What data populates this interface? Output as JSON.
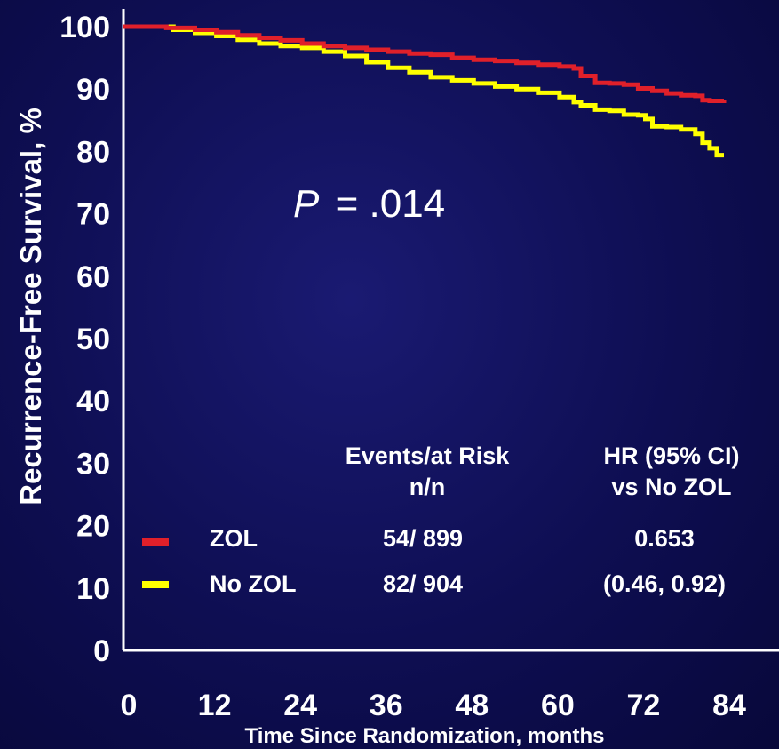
{
  "chart_data": {
    "type": "line",
    "xlabel": "Time Since Randomization, months",
    "ylabel": "Recurrence-Free Survival, %",
    "xlim": [
      0,
      84
    ],
    "ylim": [
      0,
      100
    ],
    "xticks": [
      "0",
      "12",
      "24",
      "36",
      "48",
      "60",
      "72",
      "84"
    ],
    "yticks": [
      "0",
      "10",
      "20",
      "30",
      "40",
      "50",
      "60",
      "70",
      "80",
      "90",
      "100"
    ],
    "annotation": {
      "p_prefix": "P",
      "p_value": "= .014"
    },
    "series": [
      {
        "name": "ZOL",
        "color": "#e0202a",
        "x": [
          0,
          4,
          6,
          10,
          13,
          16,
          19,
          22,
          25,
          28,
          31,
          34,
          37,
          40,
          43,
          46,
          49,
          52,
          55,
          58,
          61,
          63,
          64,
          66,
          68,
          70,
          72,
          74,
          76,
          78,
          80,
          81,
          82,
          84
        ],
        "y": [
          100,
          100,
          99.8,
          99.5,
          99.1,
          98.6,
          98.2,
          97.8,
          97.3,
          96.9,
          96.6,
          96.3,
          96.0,
          95.7,
          95.5,
          95.0,
          94.7,
          94.5,
          94.2,
          93.9,
          93.6,
          93.3,
          92.1,
          91.0,
          90.9,
          90.7,
          90.1,
          89.7,
          89.3,
          89.0,
          88.9,
          88.2,
          88.1,
          88.3
        ]
      },
      {
        "name": "No ZOL",
        "color": "#ffff00",
        "x": [
          0,
          4,
          7,
          10,
          13,
          16,
          19,
          22,
          25,
          28,
          31,
          34,
          37,
          40,
          43,
          46,
          49,
          52,
          55,
          58,
          61,
          63,
          64,
          66,
          68,
          70,
          72,
          73,
          74,
          76,
          78,
          80,
          81,
          82,
          83,
          84
        ],
        "y": [
          100,
          100,
          99.5,
          99.0,
          98.5,
          97.9,
          97.3,
          96.9,
          96.6,
          96.0,
          95.3,
          94.3,
          93.4,
          92.7,
          91.9,
          91.4,
          90.9,
          90.4,
          90.0,
          89.4,
          88.7,
          87.9,
          87.4,
          86.7,
          86.5,
          85.9,
          85.8,
          85.2,
          84.0,
          83.9,
          83.5,
          82.8,
          81.4,
          80.5,
          79.4,
          79.4
        ]
      }
    ],
    "table": {
      "header_events": [
        "Events/at Risk",
        "n/n"
      ],
      "header_hr": [
        "HR (95% CI)",
        "vs No ZOL"
      ],
      "rows": [
        {
          "label": "ZOL",
          "color": "#e0202a",
          "events": "54/ 899",
          "hr": "0.653"
        },
        {
          "label": "No ZOL",
          "color": "#ffff00",
          "events": "82/ 904",
          "hr": "(0.46, 0.92)"
        }
      ]
    }
  }
}
